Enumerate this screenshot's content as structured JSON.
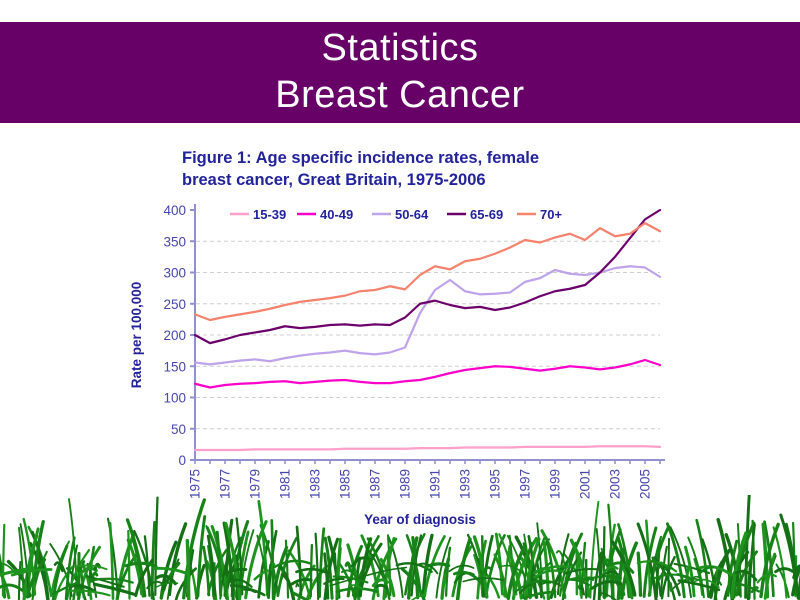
{
  "slide": {
    "title_line1": "Statistics",
    "title_line2": "Breast Cancer",
    "banner_color": "#670067",
    "title_color": "#FFFFFF"
  },
  "figure": {
    "caption_line1": "Figure 1: Age specific incidence rates, female",
    "caption_line2": "breast cancer, Great Britain, 1975-2006",
    "caption_color": "#22229B"
  },
  "chart_data": {
    "type": "line",
    "title": "",
    "xlabel": "Year of diagnosis",
    "ylabel": "Rate per 100,000",
    "x": [
      1975,
      1976,
      1977,
      1978,
      1979,
      1980,
      1981,
      1982,
      1983,
      1984,
      1985,
      1986,
      1987,
      1988,
      1989,
      1990,
      1991,
      1992,
      1993,
      1994,
      1995,
      1996,
      1997,
      1998,
      1999,
      2000,
      2001,
      2002,
      2003,
      2004,
      2005,
      2006
    ],
    "xtick_labels": [
      "1975",
      "1977",
      "1979",
      "1981",
      "1983",
      "1985",
      "1987",
      "1989",
      "1991",
      "1993",
      "1995",
      "1997",
      "1999",
      "2001",
      "2003",
      "2005"
    ],
    "ylim": [
      0,
      400
    ],
    "ytick_step": 50,
    "grid": "horizontal-dashed",
    "legend_position": "top",
    "series": [
      {
        "name": "15-39",
        "color": "#FF9FCB",
        "values": [
          16,
          16,
          16,
          16,
          17,
          17,
          17,
          17,
          17,
          17,
          18,
          18,
          18,
          18,
          18,
          19,
          19,
          19,
          20,
          20,
          20,
          20,
          21,
          21,
          21,
          21,
          21,
          22,
          22,
          22,
          22,
          21
        ]
      },
      {
        "name": "40-49",
        "color": "#FF00CC",
        "values": [
          122,
          116,
          120,
          122,
          123,
          125,
          126,
          123,
          125,
          127,
          128,
          125,
          123,
          123,
          126,
          128,
          133,
          139,
          144,
          147,
          150,
          149,
          146,
          143,
          146,
          150,
          148,
          145,
          148,
          153,
          160,
          152
        ]
      },
      {
        "name": "50-64",
        "color": "#BFA3EA",
        "values": [
          156,
          153,
          156,
          159,
          161,
          158,
          163,
          167,
          170,
          172,
          175,
          171,
          169,
          172,
          180,
          235,
          272,
          288,
          270,
          265,
          266,
          268,
          285,
          291,
          304,
          298,
          296,
          300,
          307,
          310,
          308,
          293
        ]
      },
      {
        "name": "65-69",
        "color": "#6B006B",
        "values": [
          200,
          187,
          193,
          200,
          204,
          208,
          214,
          211,
          213,
          216,
          217,
          215,
          217,
          216,
          228,
          250,
          255,
          248,
          243,
          245,
          240,
          244,
          252,
          262,
          270,
          274,
          280,
          300,
          325,
          355,
          385,
          400
        ]
      },
      {
        "name": "70+",
        "color": "#F4826C",
        "values": [
          233,
          224,
          229,
          233,
          237,
          242,
          248,
          253,
          256,
          259,
          263,
          270,
          272,
          278,
          273,
          296,
          310,
          305,
          318,
          322,
          330,
          340,
          352,
          348,
          356,
          362,
          352,
          371,
          358,
          362,
          379,
          366
        ]
      }
    ]
  },
  "colors": {
    "axis": "#9090CC",
    "tick_label": "#4646AB",
    "gridline": "#CFCFCF",
    "grass": [
      "#147014",
      "#178217",
      "#1E941E"
    ]
  }
}
